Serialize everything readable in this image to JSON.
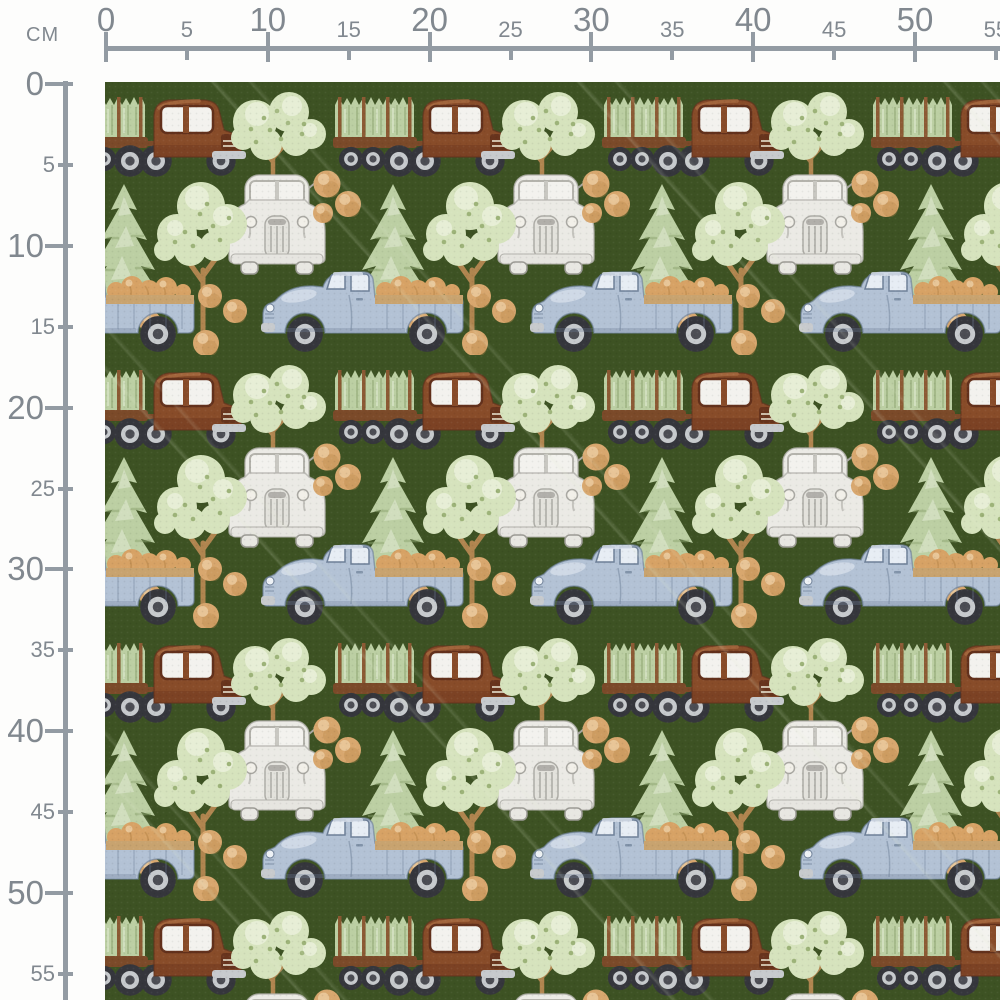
{
  "page": {
    "title": "Fabric pattern scale preview with centimeter rulers"
  },
  "ruler": {
    "unit_label": "CM",
    "tick_interval_cm": 5,
    "major_every_cm": 10,
    "tick_labels": [
      "0",
      "5",
      "10",
      "15",
      "20",
      "25",
      "30",
      "35",
      "40",
      "45",
      "50",
      "55"
    ]
  },
  "pattern": {
    "description": "watercolor vintage trucks with christmas trees, pines, round sage trees, pumpkins and orange dots on dark green fabric",
    "motifs": [
      "brown-logging-truck-with-pine-tree-trailer",
      "white-vintage-truck-front-view",
      "blue-pickup-truck-with-pumpkins",
      "round-sage-tree",
      "pine-tree",
      "orange-dots"
    ],
    "palette": {
      "background_green": "#3d5222",
      "truck_brown": "#8a4c28",
      "truck_brown_dark": "#63301a",
      "truck_brown_light": "#aa6b3e",
      "trailer_brown": "#7c4a28",
      "stake_brown": "#8d5a33",
      "truck_blue": "#b3c2d6",
      "truck_blue_light": "#d8e0eb",
      "truck_blue_shade": "#8da1bb",
      "truck_blue_dark": "#6d7f98",
      "truck_white": "#ebeae5",
      "truck_white_shade": "#c8c7c1",
      "truck_white_dark": "#a3a29c",
      "window_white": "#f3f2ee",
      "window_blue": "#e7edf4",
      "foliage_green": "#d6e3bc",
      "foliage_light": "#e9f0d8",
      "foliage_dark": "#9db377",
      "pine_green": "#bccfa2",
      "pine_dark": "#8ca36d",
      "pine_light": "#e2ebd2",
      "trunk_tan": "#b1854d",
      "trunk_dark": "#8a6130",
      "bed_rail_tan": "#c9a36d",
      "dot_orange": "#d9a76c",
      "dot_orange_light": "#ecca9c",
      "dot_orange_dark": "#bb8747",
      "pumpkin_orange": "#d8a263",
      "tire_gray": "#35363c",
      "rim_gray": "#c7cacd",
      "hub_gray": "#4c4d54",
      "ruler_line": "#939ba3",
      "ruler_text": "#81888f"
    }
  }
}
